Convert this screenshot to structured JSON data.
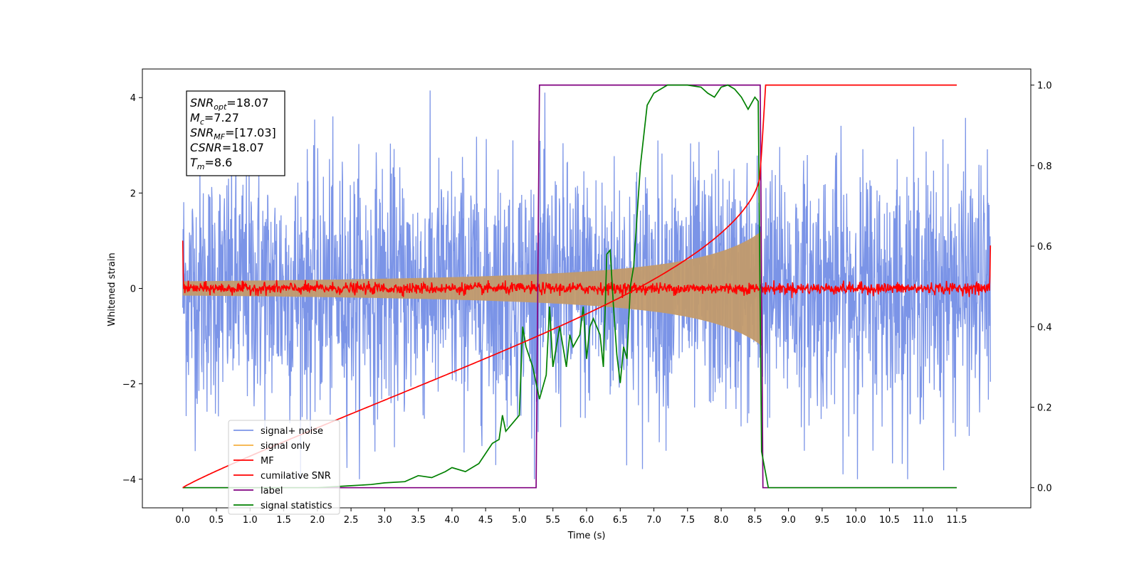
{
  "chart_data": {
    "type": "line",
    "xlabel": "Time (s)",
    "ylabel": "Whitened strain",
    "xlim": [
      -0.6,
      12.6
    ],
    "ylim_left": [
      -4.6,
      4.6
    ],
    "ylim_right": [
      -0.05,
      1.04
    ],
    "x_ticks": [
      "0.0",
      "0.5",
      "1.0",
      "1.5",
      "2.0",
      "2.5",
      "3.0",
      "3.5",
      "4.0",
      "4.5",
      "5.0",
      "5.5",
      "6.0",
      "6.5",
      "7.0",
      "7.5",
      "8.0",
      "8.5",
      "9.0",
      "9.5",
      "10.0",
      "10.5",
      "11.0",
      "11.5"
    ],
    "x_tick_values": [
      0,
      0.5,
      1,
      1.5,
      2,
      2.5,
      3,
      3.5,
      4,
      4.5,
      5,
      5.5,
      6,
      6.5,
      7,
      7.5,
      8,
      8.5,
      9,
      9.5,
      10,
      10.5,
      11,
      11.5
    ],
    "y_ticks_left": [
      4,
      2,
      0,
      -2,
      -4
    ],
    "y_ticks_right": [
      1.0,
      0.8,
      0.6,
      0.4,
      0.2,
      0.0
    ],
    "grid": false,
    "legend_placement": "lower-left",
    "legend": [
      "signal+ noise",
      "signal only",
      "MF",
      "cumilative SNR",
      "label",
      "signal statistics"
    ],
    "annotation": {
      "lines": [
        {
          "sym": "SNR",
          "sub": "opt",
          "val": "=18.07"
        },
        {
          "sym": "M",
          "sub": "c",
          "val": "=7.27"
        },
        {
          "sym": "SNR",
          "sub": "MF",
          "val": "=[17.03]"
        },
        {
          "sym": "CSNR",
          "sub": "",
          "val": "=18.07"
        },
        {
          "sym": "T",
          "sub": "m",
          "val": "=8.6"
        }
      ]
    },
    "series": [
      {
        "name": "signal+ noise",
        "color": "#7b94e7",
        "axis": "left",
        "style": "noise",
        "x_range": [
          0,
          12
        ],
        "mean": 0.0,
        "std": 1.3
      },
      {
        "name": "signal only",
        "color": "#f5b041",
        "axis": "left",
        "style": "chirp",
        "x_range": [
          0,
          8.6
        ],
        "amplitude_at_start": 0.05,
        "amplitude_at_merger": 1.2
      },
      {
        "name": "MF",
        "color": "#ff0000",
        "axis": "left",
        "style": "noise",
        "x_range": [
          0,
          12
        ],
        "mean": 0.0,
        "std": 0.06,
        "edge_values": [
          1.0,
          0.9
        ]
      },
      {
        "name": "cumilative SNR",
        "color": "#ff0000",
        "axis": "right",
        "x": [
          0.0,
          0.05,
          0.5,
          1.0,
          1.5,
          2.0,
          2.5,
          3.0,
          3.5,
          4.0,
          4.5,
          5.0,
          5.5,
          6.0,
          6.5,
          7.0,
          7.5,
          8.0,
          8.2,
          8.4,
          8.5,
          8.6,
          8.65,
          11.5
        ],
        "values": [
          0.0,
          0.01,
          0.07,
          0.1,
          0.13,
          0.155,
          0.18,
          0.205,
          0.23,
          0.255,
          0.285,
          0.315,
          0.35,
          0.385,
          0.43,
          0.48,
          0.54,
          0.63,
          0.68,
          0.75,
          0.8,
          0.87,
          1.0,
          1.0
        ]
      },
      {
        "name": "label",
        "color": "#800080",
        "axis": "right",
        "x": [
          0.0,
          5.25,
          5.3,
          8.58,
          8.62,
          11.5
        ],
        "values": [
          0.0,
          0.0,
          1.0,
          1.0,
          0.0,
          0.0
        ]
      },
      {
        "name": "signal statistics",
        "color": "#008000",
        "axis": "right",
        "x": [
          0.0,
          2.0,
          2.5,
          2.8,
          3.0,
          3.3,
          3.5,
          3.7,
          3.9,
          4.0,
          4.2,
          4.4,
          4.6,
          4.7,
          4.75,
          4.8,
          4.9,
          5.0,
          5.05,
          5.1,
          5.2,
          5.3,
          5.4,
          5.45,
          5.5,
          5.55,
          5.6,
          5.7,
          5.75,
          5.8,
          5.9,
          5.95,
          6.0,
          6.05,
          6.1,
          6.2,
          6.25,
          6.3,
          6.35,
          6.4,
          6.45,
          6.5,
          6.55,
          6.6,
          6.65,
          6.7,
          6.8,
          6.9,
          7.0,
          7.2,
          7.5,
          7.7,
          7.8,
          7.9,
          8.0,
          8.1,
          8.2,
          8.3,
          8.4,
          8.5,
          8.55,
          8.6,
          8.7,
          11.5
        ],
        "values": [
          0.0,
          0.0,
          0.005,
          0.008,
          0.012,
          0.015,
          0.03,
          0.025,
          0.04,
          0.05,
          0.04,
          0.06,
          0.11,
          0.12,
          0.18,
          0.14,
          0.16,
          0.18,
          0.4,
          0.35,
          0.3,
          0.22,
          0.28,
          0.45,
          0.3,
          0.35,
          0.4,
          0.3,
          0.38,
          0.35,
          0.38,
          0.45,
          0.32,
          0.4,
          0.42,
          0.38,
          0.3,
          0.58,
          0.59,
          0.45,
          0.33,
          0.26,
          0.35,
          0.32,
          0.5,
          0.55,
          0.8,
          0.95,
          0.98,
          1.0,
          1.0,
          0.995,
          0.98,
          0.97,
          0.995,
          1.0,
          0.99,
          0.97,
          0.94,
          0.97,
          0.96,
          0.09,
          0.0,
          0.0
        ]
      }
    ]
  }
}
